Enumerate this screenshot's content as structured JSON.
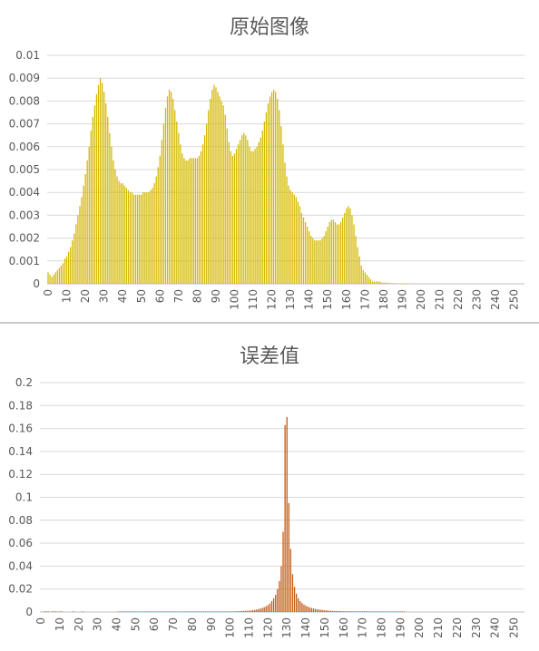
{
  "chart_data": [
    {
      "type": "bar",
      "title": "原始图像",
      "color": "#d4b800",
      "edge_color": "#f2e27a",
      "ylim": [
        0,
        0.01
      ],
      "yticks": [
        "0",
        "0.001",
        "0.002",
        "0.003",
        "0.004",
        "0.005",
        "0.006",
        "0.007",
        "0.008",
        "0.009",
        "0.01"
      ],
      "xticks": [
        "0",
        "10",
        "20",
        "30",
        "40",
        "50",
        "60",
        "70",
        "80",
        "90",
        "100",
        "110",
        "120",
        "130",
        "140",
        "150",
        "160",
        "170",
        "180",
        "190",
        "200",
        "210",
        "220",
        "230",
        "240",
        "250"
      ],
      "grid": true,
      "x_start": 0,
      "values": [
        0.0005,
        0.0004,
        0.0003,
        0.0004,
        0.0005,
        0.0006,
        0.0007,
        0.0008,
        0.0009,
        0.0011,
        0.0012,
        0.0014,
        0.0016,
        0.0019,
        0.0022,
        0.0026,
        0.003,
        0.0034,
        0.0038,
        0.0043,
        0.0048,
        0.0054,
        0.006,
        0.0067,
        0.0073,
        0.0078,
        0.0083,
        0.0087,
        0.009,
        0.0088,
        0.0084,
        0.0079,
        0.0073,
        0.0066,
        0.006,
        0.0054,
        0.005,
        0.0047,
        0.0045,
        0.0044,
        0.0044,
        0.0043,
        0.0042,
        0.0041,
        0.004,
        0.004,
        0.0039,
        0.0039,
        0.0039,
        0.0039,
        0.0039,
        0.004,
        0.004,
        0.004,
        0.004,
        0.0041,
        0.0042,
        0.0044,
        0.0047,
        0.0051,
        0.0056,
        0.0063,
        0.007,
        0.0077,
        0.0082,
        0.0085,
        0.0084,
        0.0081,
        0.0076,
        0.0071,
        0.0066,
        0.0061,
        0.0057,
        0.0055,
        0.0054,
        0.0054,
        0.0055,
        0.0055,
        0.0055,
        0.0055,
        0.0055,
        0.0056,
        0.0058,
        0.0061,
        0.0065,
        0.007,
        0.0076,
        0.0081,
        0.0085,
        0.0087,
        0.0086,
        0.0084,
        0.0082,
        0.008,
        0.0078,
        0.0074,
        0.0068,
        0.0062,
        0.0058,
        0.0056,
        0.0057,
        0.0059,
        0.0061,
        0.0063,
        0.0065,
        0.0066,
        0.0065,
        0.0063,
        0.006,
        0.0058,
        0.0058,
        0.0059,
        0.006,
        0.0062,
        0.0064,
        0.0067,
        0.0071,
        0.0075,
        0.0079,
        0.0082,
        0.0084,
        0.0085,
        0.0084,
        0.0081,
        0.0076,
        0.0069,
        0.0061,
        0.0053,
        0.0047,
        0.0043,
        0.0041,
        0.004,
        0.0039,
        0.0038,
        0.0036,
        0.0034,
        0.0031,
        0.0029,
        0.0027,
        0.0025,
        0.0023,
        0.0021,
        0.002,
        0.0019,
        0.0019,
        0.0019,
        0.0019,
        0.002,
        0.0021,
        0.0023,
        0.0025,
        0.0027,
        0.0028,
        0.0028,
        0.0027,
        0.0026,
        0.0026,
        0.0027,
        0.0029,
        0.0031,
        0.0033,
        0.0034,
        0.0033,
        0.003,
        0.0026,
        0.0021,
        0.0016,
        0.0012,
        0.0008,
        0.0006,
        0.0005,
        0.0004,
        0.0003,
        0.0002,
        0.0001,
        0.0001,
        0.0001,
        0.0001,
        0.0001,
        5e-05,
        5e-05,
        5e-05,
        5e-05,
        3e-05,
        3e-05,
        3e-05,
        2e-05,
        2e-05,
        2e-05,
        1e-05,
        1e-05,
        1e-05,
        1e-05,
        1e-05,
        0,
        0,
        0,
        0,
        0,
        0,
        0,
        0,
        0,
        0,
        0,
        0,
        0,
        0,
        0,
        0,
        0,
        0,
        0,
        0,
        0,
        0,
        0,
        0,
        0,
        0,
        0,
        0,
        0,
        0,
        0,
        0,
        0,
        0,
        0,
        0,
        0,
        0,
        0,
        0,
        0,
        0,
        0,
        0,
        0,
        0,
        0,
        0
      ]
    },
    {
      "type": "bar",
      "title": "误差值",
      "color": "#c55a11",
      "edge_color": "#e8a36a",
      "ylim": [
        0,
        0.2
      ],
      "yticks": [
        "0",
        "0.02",
        "0.04",
        "0.06",
        "0.08",
        "0.1",
        "0.12",
        "0.14",
        "0.16",
        "0.18",
        "0.2"
      ],
      "xticks": [
        "0",
        "10",
        "20",
        "30",
        "40",
        "50",
        "60",
        "70",
        "80",
        "90",
        "100",
        "110",
        "120",
        "130",
        "140",
        "150",
        "160",
        "170",
        "180",
        "190",
        "200",
        "210",
        "220",
        "230",
        "240",
        "250"
      ],
      "grid": true,
      "x_start": 0,
      "values": [
        0,
        0,
        0.0005,
        0.0005,
        0.0005,
        0,
        0.0005,
        0.0005,
        0.0005,
        0,
        0.0005,
        0.0005,
        0,
        0,
        0,
        0,
        0,
        0.0005,
        0,
        0,
        0,
        0,
        0.0005,
        0,
        0,
        0,
        0,
        0,
        0,
        0,
        0,
        0,
        0,
        0,
        0,
        0,
        0,
        0,
        0,
        0,
        0,
        0.0005,
        0.0005,
        0.0005,
        0.0005,
        0.0005,
        0.0005,
        0.0005,
        0.0005,
        0.0005,
        0.0005,
        0.0005,
        0.0005,
        0.0005,
        0.0005,
        0.0005,
        0.0005,
        0.0005,
        0.0005,
        0.0005,
        0.0005,
        0.0005,
        0.0005,
        0.0005,
        0.0005,
        0.0005,
        0.0005,
        0.0005,
        0.0005,
        0.0005,
        0.0005,
        0.0005,
        0.0005,
        0.0005,
        0.0005,
        0.0005,
        0.0005,
        0.0005,
        0.0005,
        0.0005,
        0.0005,
        0.0005,
        0.0005,
        0.0005,
        0.0005,
        0.0005,
        0.0005,
        0.0005,
        0.0005,
        0.0005,
        0.0005,
        0.0005,
        0.0005,
        0.0005,
        0.0005,
        0.0005,
        0.0005,
        0.0005,
        0.0005,
        0.0005,
        0.0005,
        0.0005,
        0.0006,
        0.0006,
        0.0007,
        0.0007,
        0.0008,
        0.0009,
        0.001,
        0.0011,
        0.0012,
        0.0014,
        0.0016,
        0.0019,
        0.0022,
        0.0026,
        0.003,
        0.0035,
        0.0042,
        0.005,
        0.006,
        0.0075,
        0.0095,
        0.012,
        0.015,
        0.02,
        0.027,
        0.04,
        0.07,
        0.163,
        0.17,
        0.095,
        0.055,
        0.033,
        0.022,
        0.016,
        0.012,
        0.0095,
        0.0078,
        0.0065,
        0.0055,
        0.0047,
        0.004,
        0.0035,
        0.0031,
        0.0027,
        0.0024,
        0.0021,
        0.0019,
        0.0017,
        0.0015,
        0.0014,
        0.0012,
        0.0011,
        0.001,
        0.0009,
        0.0009,
        0.0008,
        0.0008,
        0.0007,
        0.0007,
        0.0007,
        0.0006,
        0.0006,
        0.0006,
        0.0006,
        0.0006,
        0.0006,
        0.0006,
        0.0006,
        0.0006,
        0.0006,
        0.0006,
        0.0005,
        0.0005,
        0.0005,
        0.0005,
        0.0005,
        0.0005,
        0.0005,
        0.0005,
        0.0005,
        0.0005,
        0.0005,
        0.0005,
        0.0005,
        0.0005,
        0.0005,
        0.0005,
        0.0005,
        0.0005,
        0.0005,
        0.0005,
        0,
        0,
        0,
        0,
        0,
        0,
        0,
        0,
        0,
        0,
        0,
        0,
        0,
        0,
        0,
        0,
        0,
        0,
        0,
        0,
        0,
        0,
        0,
        0,
        0,
        0,
        0,
        0,
        0,
        0,
        0,
        0,
        0,
        0,
        0,
        0,
        0,
        0,
        0,
        0,
        0,
        0,
        0,
        0,
        0,
        0,
        0,
        0,
        0,
        0,
        0,
        0,
        0,
        0,
        0,
        0
      ]
    }
  ]
}
